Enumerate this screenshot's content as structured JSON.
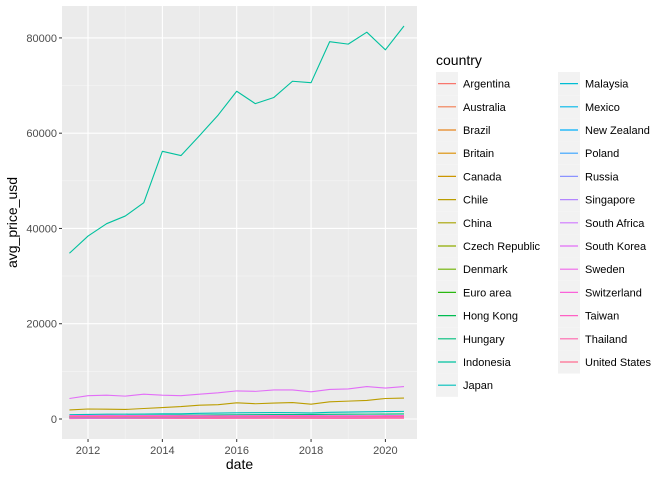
{
  "chart_data": {
    "type": "line",
    "xlabel": "date",
    "ylabel": "avg_price_usd",
    "legend_title": "country",
    "legend_position": "right",
    "grid": true,
    "xlim": [
      2011.3,
      2020.85
    ],
    "ylim": [
      -4200,
      86700
    ],
    "x_ticks": [
      2012,
      2014,
      2016,
      2018,
      2020
    ],
    "x_tick_labels": [
      "2012",
      "2014",
      "2016",
      "2018",
      "2020"
    ],
    "y_ticks": [
      0,
      20000,
      40000,
      60000,
      80000
    ],
    "y_tick_labels": [
      "0",
      "20000",
      "40000",
      "60000",
      "80000"
    ],
    "x": [
      2011.5,
      2012.0,
      2012.5,
      2013.0,
      2013.5,
      2014.0,
      2014.5,
      2015.0,
      2015.5,
      2016.0,
      2016.5,
      2017.0,
      2017.5,
      2018.0,
      2018.5,
      2019.0,
      2019.5,
      2020.0,
      2020.5
    ],
    "series": [
      {
        "name": "Argentina",
        "color": "#F8766D",
        "values": [
          100,
          110,
          120,
          130,
          140,
          150,
          140,
          130,
          150,
          160,
          170,
          160,
          150,
          140,
          130,
          150,
          160,
          170,
          160
        ]
      },
      {
        "name": "Australia",
        "color": "#F17D51",
        "values": [
          470,
          480,
          490,
          500,
          490,
          480,
          470,
          460,
          450,
          460,
          470,
          480,
          470,
          460,
          450,
          440,
          430,
          440,
          450
        ]
      },
      {
        "name": "Brazil",
        "color": "#E7851E",
        "values": [
          260,
          270,
          280,
          270,
          260,
          250,
          240,
          230,
          220,
          230,
          240,
          250,
          240,
          230,
          220,
          210,
          220,
          230,
          240
        ]
      },
      {
        "name": "Britain",
        "color": "#DB8E00",
        "values": [
          390,
          400,
          410,
          400,
          410,
          420,
          410,
          400,
          390,
          380,
          390,
          400,
          410,
          400,
          390,
          380,
          390,
          400,
          410
        ]
      },
      {
        "name": "Canada",
        "color": "#CC9600",
        "values": [
          520,
          530,
          540,
          550,
          540,
          530,
          520,
          510,
          500,
          510,
          520,
          530,
          540,
          530,
          520,
          510,
          520,
          530,
          540
        ]
      },
      {
        "name": "Chile",
        "color": "#BB9D00",
        "values": [
          1900,
          2100,
          2050,
          2000,
          2200,
          2400,
          2600,
          2900,
          3000,
          3400,
          3200,
          3350,
          3450,
          3100,
          3600,
          3750,
          3900,
          4300,
          4400
        ]
      },
      {
        "name": "China",
        "color": "#A7A300",
        "values": [
          250,
          260,
          270,
          280,
          290,
          300,
          310,
          320,
          330,
          340,
          350,
          360,
          370,
          380,
          390,
          400,
          410,
          420,
          430
        ]
      },
      {
        "name": "Czech Republic",
        "color": "#8EAB00",
        "values": [
          420,
          430,
          440,
          430,
          420,
          410,
          400,
          390,
          400,
          410,
          420,
          430,
          440,
          430,
          420,
          410,
          420,
          430,
          440
        ]
      },
      {
        "name": "Denmark",
        "color": "#6EB200",
        "values": [
          600,
          610,
          620,
          610,
          600,
          590,
          580,
          570,
          560,
          570,
          580,
          590,
          600,
          590,
          580,
          570,
          580,
          590,
          600
        ]
      },
      {
        "name": "Euro area",
        "color": "#2AB810",
        "values": [
          480,
          490,
          500,
          490,
          480,
          470,
          460,
          450,
          440,
          450,
          460,
          470,
          480,
          470,
          460,
          450,
          460,
          470,
          480
        ]
      },
      {
        "name": "Hong Kong",
        "color": "#00BC52",
        "values": [
          160,
          170,
          180,
          190,
          200,
          210,
          220,
          230,
          240,
          250,
          260,
          270,
          280,
          290,
          300,
          310,
          320,
          330,
          340
        ]
      },
      {
        "name": "Hungary",
        "color": "#00BF7C",
        "values": [
          700,
          720,
          740,
          760,
          780,
          800,
          820,
          840,
          860,
          880,
          900,
          920,
          940,
          960,
          980,
          1000,
          1020,
          1040,
          1060
        ]
      },
      {
        "name": "Indonesia",
        "color": "#00C19E",
        "values": [
          34800,
          38400,
          41000,
          42600,
          45400,
          56200,
          55300,
          59500,
          63800,
          68800,
          66200,
          67500,
          70900,
          70600,
          79200,
          78700,
          81200,
          77500,
          82500
        ]
      },
      {
        "name": "Japan",
        "color": "#00C0BB",
        "values": [
          900,
          950,
          1000,
          1020,
          1050,
          1080,
          1100,
          1200,
          1250,
          1300,
          1320,
          1350,
          1320,
          1280,
          1400,
          1450,
          1500,
          1550,
          1600
        ]
      },
      {
        "name": "Malaysia",
        "color": "#00BDD4",
        "values": [
          200,
          210,
          220,
          230,
          240,
          250,
          260,
          270,
          280,
          290,
          300,
          310,
          320,
          330,
          340,
          350,
          360,
          370,
          380
        ]
      },
      {
        "name": "Mexico",
        "color": "#00B7E9",
        "values": [
          340,
          350,
          360,
          350,
          340,
          330,
          320,
          310,
          300,
          310,
          320,
          330,
          340,
          330,
          320,
          310,
          320,
          330,
          340
        ]
      },
      {
        "name": "New Zealand",
        "color": "#00AEFA",
        "values": [
          550,
          560,
          570,
          560,
          550,
          540,
          530,
          520,
          510,
          520,
          530,
          540,
          550,
          540,
          530,
          520,
          530,
          540,
          550
        ]
      },
      {
        "name": "Poland",
        "color": "#35A2FF",
        "values": [
          300,
          310,
          320,
          310,
          300,
          290,
          280,
          270,
          260,
          270,
          280,
          290,
          300,
          290,
          280,
          270,
          280,
          290,
          300
        ]
      },
      {
        "name": "Russia",
        "color": "#8B93FF",
        "values": [
          150,
          160,
          170,
          180,
          190,
          200,
          210,
          220,
          230,
          240,
          250,
          260,
          270,
          280,
          290,
          300,
          310,
          320,
          330
        ]
      },
      {
        "name": "Singapore",
        "color": "#B385FF",
        "values": [
          580,
          590,
          600,
          590,
          580,
          570,
          560,
          550,
          540,
          550,
          560,
          570,
          580,
          570,
          560,
          550,
          560,
          570,
          580
        ]
      },
      {
        "name": "South Africa",
        "color": "#CF78FF",
        "values": [
          130,
          140,
          150,
          160,
          170,
          180,
          190,
          200,
          210,
          220,
          230,
          240,
          250,
          260,
          270,
          280,
          290,
          300,
          310
        ]
      },
      {
        "name": "South Korea",
        "color": "#E26EF7",
        "values": [
          4300,
          4900,
          5000,
          4800,
          5200,
          5000,
          4900,
          5200,
          5500,
          5900,
          5800,
          6100,
          6100,
          5700,
          6200,
          6300,
          6800,
          6500,
          6800
        ]
      },
      {
        "name": "Sweden",
        "color": "#F066EA",
        "values": [
          650,
          660,
          670,
          660,
          650,
          640,
          630,
          620,
          610,
          620,
          630,
          640,
          650,
          640,
          630,
          620,
          630,
          640,
          650
        ]
      },
      {
        "name": "Switzerland",
        "color": "#FA62D9",
        "values": [
          720,
          730,
          740,
          730,
          720,
          710,
          700,
          690,
          680,
          690,
          700,
          710,
          720,
          710,
          700,
          690,
          700,
          710,
          720
        ]
      },
      {
        "name": "Taiwan",
        "color": "#FE61C4",
        "values": [
          220,
          230,
          240,
          230,
          220,
          210,
          200,
          190,
          180,
          190,
          200,
          210,
          220,
          210,
          200,
          190,
          200,
          210,
          220
        ]
      },
      {
        "name": "Thailand",
        "color": "#FF64AC",
        "values": [
          200,
          210,
          220,
          210,
          200,
          190,
          180,
          170,
          160,
          170,
          180,
          190,
          200,
          190,
          180,
          170,
          180,
          190,
          200
        ]
      },
      {
        "name": "United States",
        "color": "#FF6C91",
        "values": [
          500,
          510,
          520,
          510,
          500,
          490,
          480,
          470,
          460,
          470,
          480,
          490,
          500,
          490,
          480,
          470,
          480,
          490,
          500
        ]
      }
    ]
  }
}
